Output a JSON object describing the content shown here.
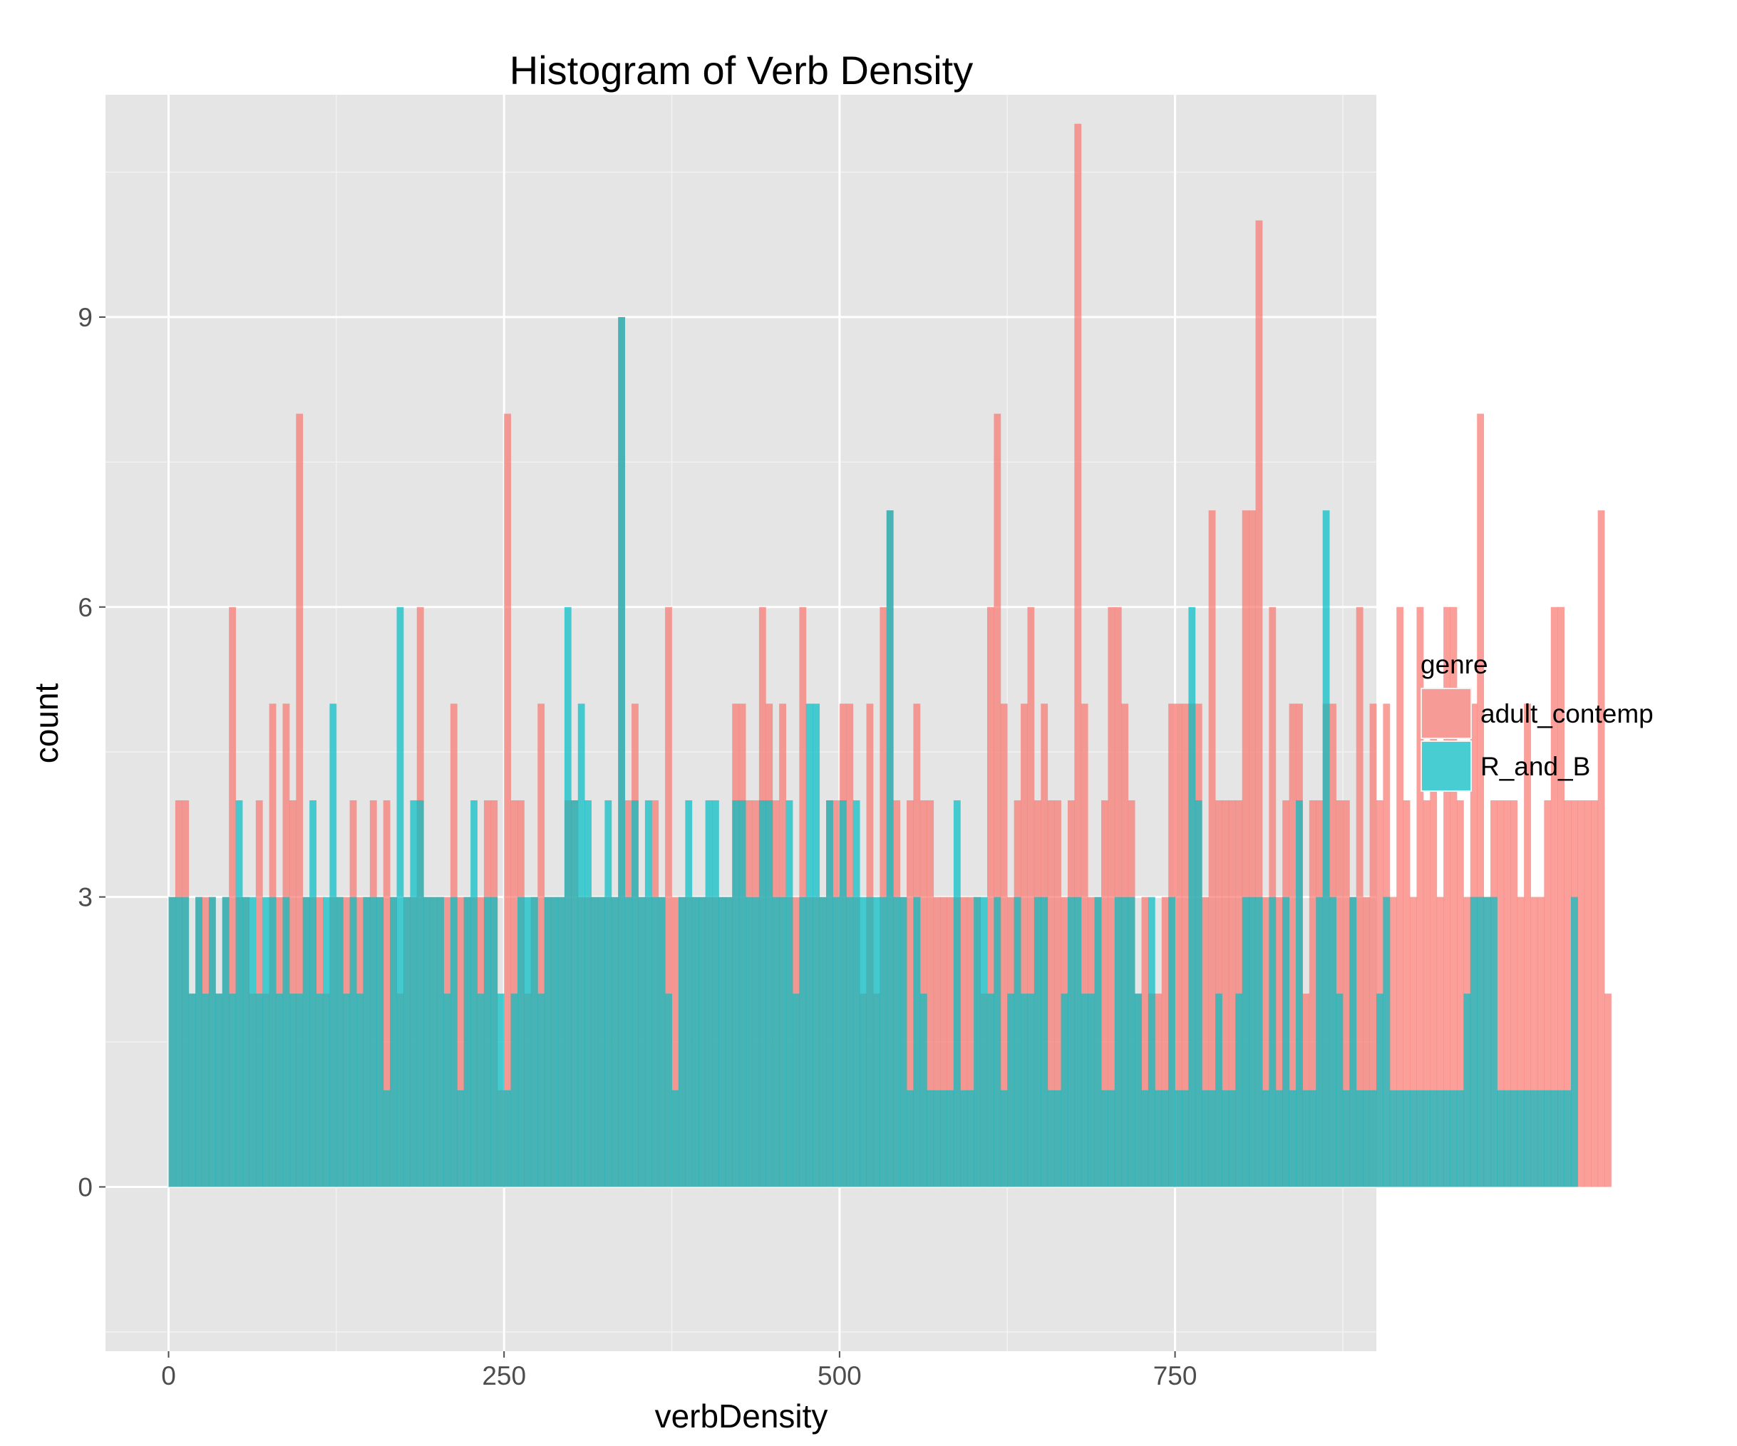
{
  "chart_data": {
    "type": "bar",
    "subtype": "histogram-overlaid",
    "title": "Histogram of Verb Density",
    "xlabel": "verbDensity",
    "ylabel": "count",
    "xlim": [
      -47,
      900
    ],
    "ylim": [
      -1.7,
      11.3
    ],
    "x_ticks": [
      0,
      250,
      500,
      750
    ],
    "x_tick_labels": [
      "0",
      "250",
      "500",
      "750"
    ],
    "y_ticks": [
      0,
      3,
      6,
      9
    ],
    "y_tick_labels": [
      "0",
      "3",
      "6",
      "9"
    ],
    "grid": true,
    "bin_width": 5,
    "legend": {
      "title": "genre",
      "position": "right",
      "entries": [
        {
          "label": "adult_contemp",
          "color": "#F8766D"
        },
        {
          "label": "R_and_B",
          "color": "#00BFC4"
        }
      ]
    },
    "series": [
      {
        "name": "adult_contemp",
        "color": "#F8766D",
        "x_start": 0,
        "values": [
          3,
          4,
          4,
          2,
          3,
          3,
          3,
          2,
          3,
          6,
          3,
          3,
          2,
          4,
          2,
          5,
          3,
          5,
          4,
          8,
          3,
          3,
          3,
          2,
          3,
          3,
          3,
          4,
          3,
          3,
          4,
          3,
          4,
          3,
          2,
          3,
          3,
          6,
          3,
          3,
          3,
          3,
          5,
          3,
          3,
          3,
          3,
          4,
          4,
          1,
          8,
          4,
          4,
          2,
          3,
          5,
          3,
          3,
          3,
          4,
          4,
          3,
          3,
          3,
          3,
          3,
          3,
          9,
          4,
          5,
          3,
          3,
          4,
          3,
          6,
          3,
          3,
          3,
          3,
          3,
          3,
          3,
          3,
          3,
          5,
          5,
          4,
          4,
          6,
          5,
          4,
          5,
          3,
          3,
          6,
          3,
          3,
          3,
          4,
          4,
          5,
          5,
          3,
          2,
          5,
          2,
          6,
          7,
          4,
          3,
          4,
          5,
          4,
          4,
          3,
          3,
          3,
          3,
          3,
          3,
          3,
          2,
          6,
          8,
          5,
          3,
          4,
          5,
          6,
          4,
          5,
          4,
          4,
          3,
          4,
          11,
          5,
          3,
          3,
          4,
          6,
          6,
          5,
          4,
          2,
          3,
          2,
          2,
          3,
          5,
          5,
          5,
          5,
          5,
          3,
          7,
          4,
          4,
          4,
          4,
          7,
          7,
          10,
          3,
          6,
          3,
          4,
          5,
          5,
          2,
          4,
          4,
          5,
          5,
          4,
          4,
          3,
          6,
          3,
          5,
          4,
          5,
          3,
          6,
          4,
          3,
          6,
          4,
          5,
          3,
          6,
          6,
          4,
          3,
          5,
          8,
          3,
          4,
          4,
          4,
          4,
          3,
          5,
          3,
          3,
          4,
          6,
          6,
          4,
          4,
          4,
          4,
          4,
          7,
          2
        ],
        "note": "Counts per bin for bins starting at x_start with width bin_width."
      },
      {
        "name": "R_and_B",
        "color": "#00BFC4",
        "x_start": 0,
        "values": [
          3,
          3,
          3,
          2,
          3,
          2,
          3,
          2,
          3,
          2,
          4,
          3,
          3,
          2,
          3,
          3,
          2,
          3,
          2,
          2,
          3,
          4,
          2,
          3,
          5,
          3,
          2,
          3,
          2,
          3,
          3,
          3,
          1,
          3,
          6,
          3,
          4,
          4,
          3,
          3,
          3,
          2,
          3,
          1,
          3,
          4,
          2,
          3,
          3,
          2,
          1,
          2,
          3,
          3,
          3,
          2,
          3,
          3,
          3,
          6,
          4,
          5,
          4,
          3,
          3,
          4,
          3,
          9,
          3,
          4,
          3,
          4,
          3,
          3,
          2,
          1,
          3,
          4,
          3,
          3,
          4,
          4,
          3,
          3,
          4,
          4,
          3,
          3,
          4,
          4,
          3,
          3,
          4,
          2,
          3,
          5,
          5,
          3,
          4,
          3,
          4,
          3,
          4,
          3,
          3,
          3,
          3,
          7,
          3,
          3,
          1,
          3,
          2,
          1,
          1,
          1,
          1,
          4,
          1,
          1,
          3,
          3,
          2,
          3,
          1,
          2,
          3,
          2,
          2,
          3,
          3,
          1,
          1,
          2,
          3,
          3,
          2,
          2,
          3,
          1,
          1,
          3,
          3,
          3,
          2,
          1,
          3,
          1,
          1,
          3,
          1,
          1,
          6,
          4,
          1,
          1,
          2,
          1,
          1,
          2,
          3,
          3,
          3,
          1,
          3,
          1,
          3,
          1,
          4,
          1,
          1,
          3,
          7,
          3,
          2,
          1,
          3,
          1,
          1,
          1,
          2,
          3,
          1,
          1,
          1,
          1,
          1,
          1,
          1,
          1,
          1,
          1,
          1,
          2,
          3,
          3,
          3,
          3,
          1,
          1,
          1,
          1,
          1,
          1,
          1,
          1,
          1,
          1,
          1,
          3
        ],
        "note": "Counts per bin for bins starting at x_start with width bin_width."
      }
    ]
  }
}
